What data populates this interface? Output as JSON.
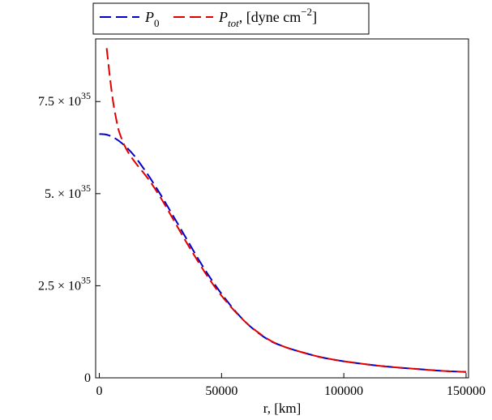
{
  "chart_data": {
    "type": "line",
    "xlabel": "r, [km]",
    "ylabel": "",
    "xlim": [
      -1500,
      151000
    ],
    "ylim": [
      0,
      9.2e+35
    ],
    "x_ticks": [
      {
        "value": 0,
        "label": "0"
      },
      {
        "value": 50000,
        "label": "50000"
      },
      {
        "value": 100000,
        "label": "100000"
      },
      {
        "value": 150000,
        "label": "150000"
      }
    ],
    "y_ticks": [
      {
        "value": 0,
        "label": "0",
        "exp": ""
      },
      {
        "value": 2.5e+35,
        "label": "2.5 × 10",
        "exp": "35"
      },
      {
        "value": 5e+35,
        "label": "5. × 10",
        "exp": "35"
      },
      {
        "value": 7.5e+35,
        "label": "7.5 × 10",
        "exp": "35"
      }
    ],
    "legend": {
      "placement": "top",
      "entries": [
        {
          "symbol": "P",
          "subscript": "0",
          "suffix": ""
        },
        {
          "symbol": "P",
          "subscript": "tot",
          "suffix": ", [dyne cm",
          "superscript": "−2",
          "closing": "]"
        }
      ]
    },
    "series": [
      {
        "name": "P_0",
        "color": "#0000cc",
        "dash": "dashed",
        "x": [
          0,
          3000,
          6000,
          9000,
          12000,
          15000,
          20000,
          25000,
          30000,
          35000,
          40000,
          45000,
          50000,
          55000,
          60000,
          65000,
          70000,
          75000,
          80000,
          90000,
          100000,
          110000,
          120000,
          130000,
          140000,
          150000
        ],
        "y": [
          6.62e+35,
          6.6e+35,
          6.52e+35,
          6.38e+35,
          6.2e+35,
          5.97e+35,
          5.5e+35,
          4.98e+35,
          4.42e+35,
          3.85e+35,
          3.28e+35,
          2.75e+35,
          2.28e+35,
          1.86e+35,
          1.5e+35,
          1.22e+35,
          1e+35,
          8.6e+34,
          7.5e+34,
          5.7e+34,
          4.5e+34,
          3.6e+34,
          2.9e+34,
          2.4e+34,
          1.9e+34,
          1.6e+34
        ]
      },
      {
        "name": "P_tot",
        "color": "#e00000",
        "dash": "dashed",
        "x": [
          3000,
          4000,
          5000,
          6000,
          7000,
          8000,
          10000,
          12000,
          15000,
          20000,
          25000,
          30000,
          35000,
          40000,
          45000,
          50000,
          55000,
          60000,
          65000,
          70000,
          75000,
          80000,
          90000,
          100000,
          110000,
          120000,
          130000,
          140000,
          150000
        ],
        "y": [
          8.95e+35,
          8.35e+35,
          7.8e+35,
          7.35e+35,
          7e+35,
          6.7e+35,
          6.35e+35,
          6.1e+35,
          5.82e+35,
          5.4e+35,
          4.9e+35,
          4.33e+35,
          3.75e+35,
          3.2e+35,
          2.68e+35,
          2.23e+35,
          1.84e+35,
          1.5e+35,
          1.23e+35,
          1.01e+35,
          8.6e+34,
          7.5e+34,
          5.7e+34,
          4.5e+34,
          3.6e+34,
          2.9e+34,
          2.4e+34,
          1.9e+34,
          1.6e+34
        ]
      }
    ]
  }
}
